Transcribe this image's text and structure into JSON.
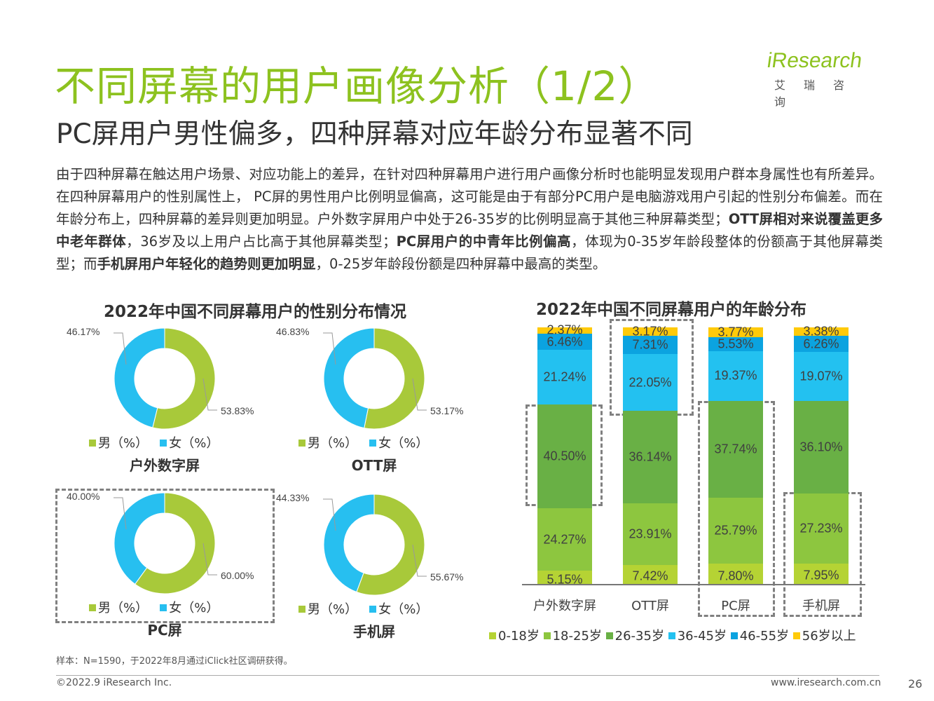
{
  "header": {
    "title": "不同屏幕的用户画像分析（1/2）",
    "subtitle": "PC屏用户男性偏多，四种屏幕对应年龄分布显著不同",
    "logo_text": "iResearch",
    "logo_sub": "艾瑞咨询",
    "brand_color": "#8dc21f"
  },
  "body": [
    {
      "t": "由于四种屏幕在触达用户场景、对应功能上的差异，在针对四种屏幕用户进行用户画像分析时也能明显发现用户群本身属性也有所差异。在四种屏幕用户的性别属性上， PC屏的男性用户比例明显偏高，这可能是由于有部分PC用户是电脑游戏用户引起的性别分布偏差。而在年龄分布上，四种屏幕的差异则更加明显。户外数字屏用户中处于26-35岁的比例明显高于其他三种屏幕类型；",
      "b": false
    },
    {
      "t": "OTT屏相对来说覆盖更多中老年群体",
      "b": true
    },
    {
      "t": "，36岁及以上用户占比高于其他屏幕类型；",
      "b": false
    },
    {
      "t": "PC屏用户的中青年比例偏高",
      "b": true
    },
    {
      "t": "，体现为0-35岁年龄段整体的份额高于其他屏幕类型；而",
      "b": false
    },
    {
      "t": "手机屏用户年轻化的趋势则更加明显",
      "b": true
    },
    {
      "t": "，0-25岁年龄段份额是四种屏幕中最高的类型。",
      "b": false
    }
  ],
  "chart_data": [
    {
      "type": "pie",
      "variant": "donut",
      "title": "2022年中国不同屏幕用户的性别分布情况",
      "legend": [
        "男（%）",
        "女（%）"
      ],
      "colors": {
        "male": "#a8c93a",
        "female": "#27bff0"
      },
      "charts": [
        {
          "name": "户外数字屏",
          "male": "53.83%",
          "female": "46.17%",
          "male_value": 53.83,
          "female_value": 46.17
        },
        {
          "name": "OTT屏",
          "male": "53.17%",
          "female": "46.83%",
          "male_value": 53.17,
          "female_value": 46.83
        },
        {
          "name": "PC屏",
          "male": "60.00%",
          "female": "40.00%",
          "male_value": 60.0,
          "female_value": 40.0,
          "highlighted": true
        },
        {
          "name": "手机屏",
          "male": "55.67%",
          "female": "44.33%",
          "male_value": 55.67,
          "female_value": 44.33
        }
      ]
    },
    {
      "type": "bar",
      "stacked": true,
      "title": "2022年中国不同屏幕用户的年龄分布",
      "categories": [
        "户外数字屏",
        "OTT屏",
        "PC屏",
        "手机屏"
      ],
      "series": [
        {
          "name": "0-18岁",
          "color": "#b5d334",
          "values": [
            5.15,
            7.42,
            7.8,
            7.95
          ]
        },
        {
          "name": "18-25岁",
          "color": "#8dc63f",
          "values": [
            24.27,
            23.91,
            25.79,
            27.23
          ]
        },
        {
          "name": "26-35岁",
          "color": "#69b045",
          "values": [
            40.5,
            36.14,
            37.74,
            36.1
          ]
        },
        {
          "name": "36-45岁",
          "color": "#23c1f0",
          "values": [
            21.24,
            22.05,
            19.37,
            19.07
          ]
        },
        {
          "name": "46-55岁",
          "color": "#0ba3e0",
          "values": [
            6.46,
            7.31,
            5.53,
            6.26
          ]
        },
        {
          "name": "56岁以上",
          "color": "#ffca0a",
          "values": [
            2.37,
            3.17,
            3.77,
            3.38
          ]
        }
      ],
      "ylim": [
        0,
        100
      ],
      "legend_position": "bottom"
    }
  ],
  "footer": {
    "note": "样本：N=1590，于2022年8月通过iClick社区调研获得。",
    "copyright": "©2022.9 iResearch Inc.",
    "website": "www.iresearch.com.cn",
    "page": "26"
  }
}
